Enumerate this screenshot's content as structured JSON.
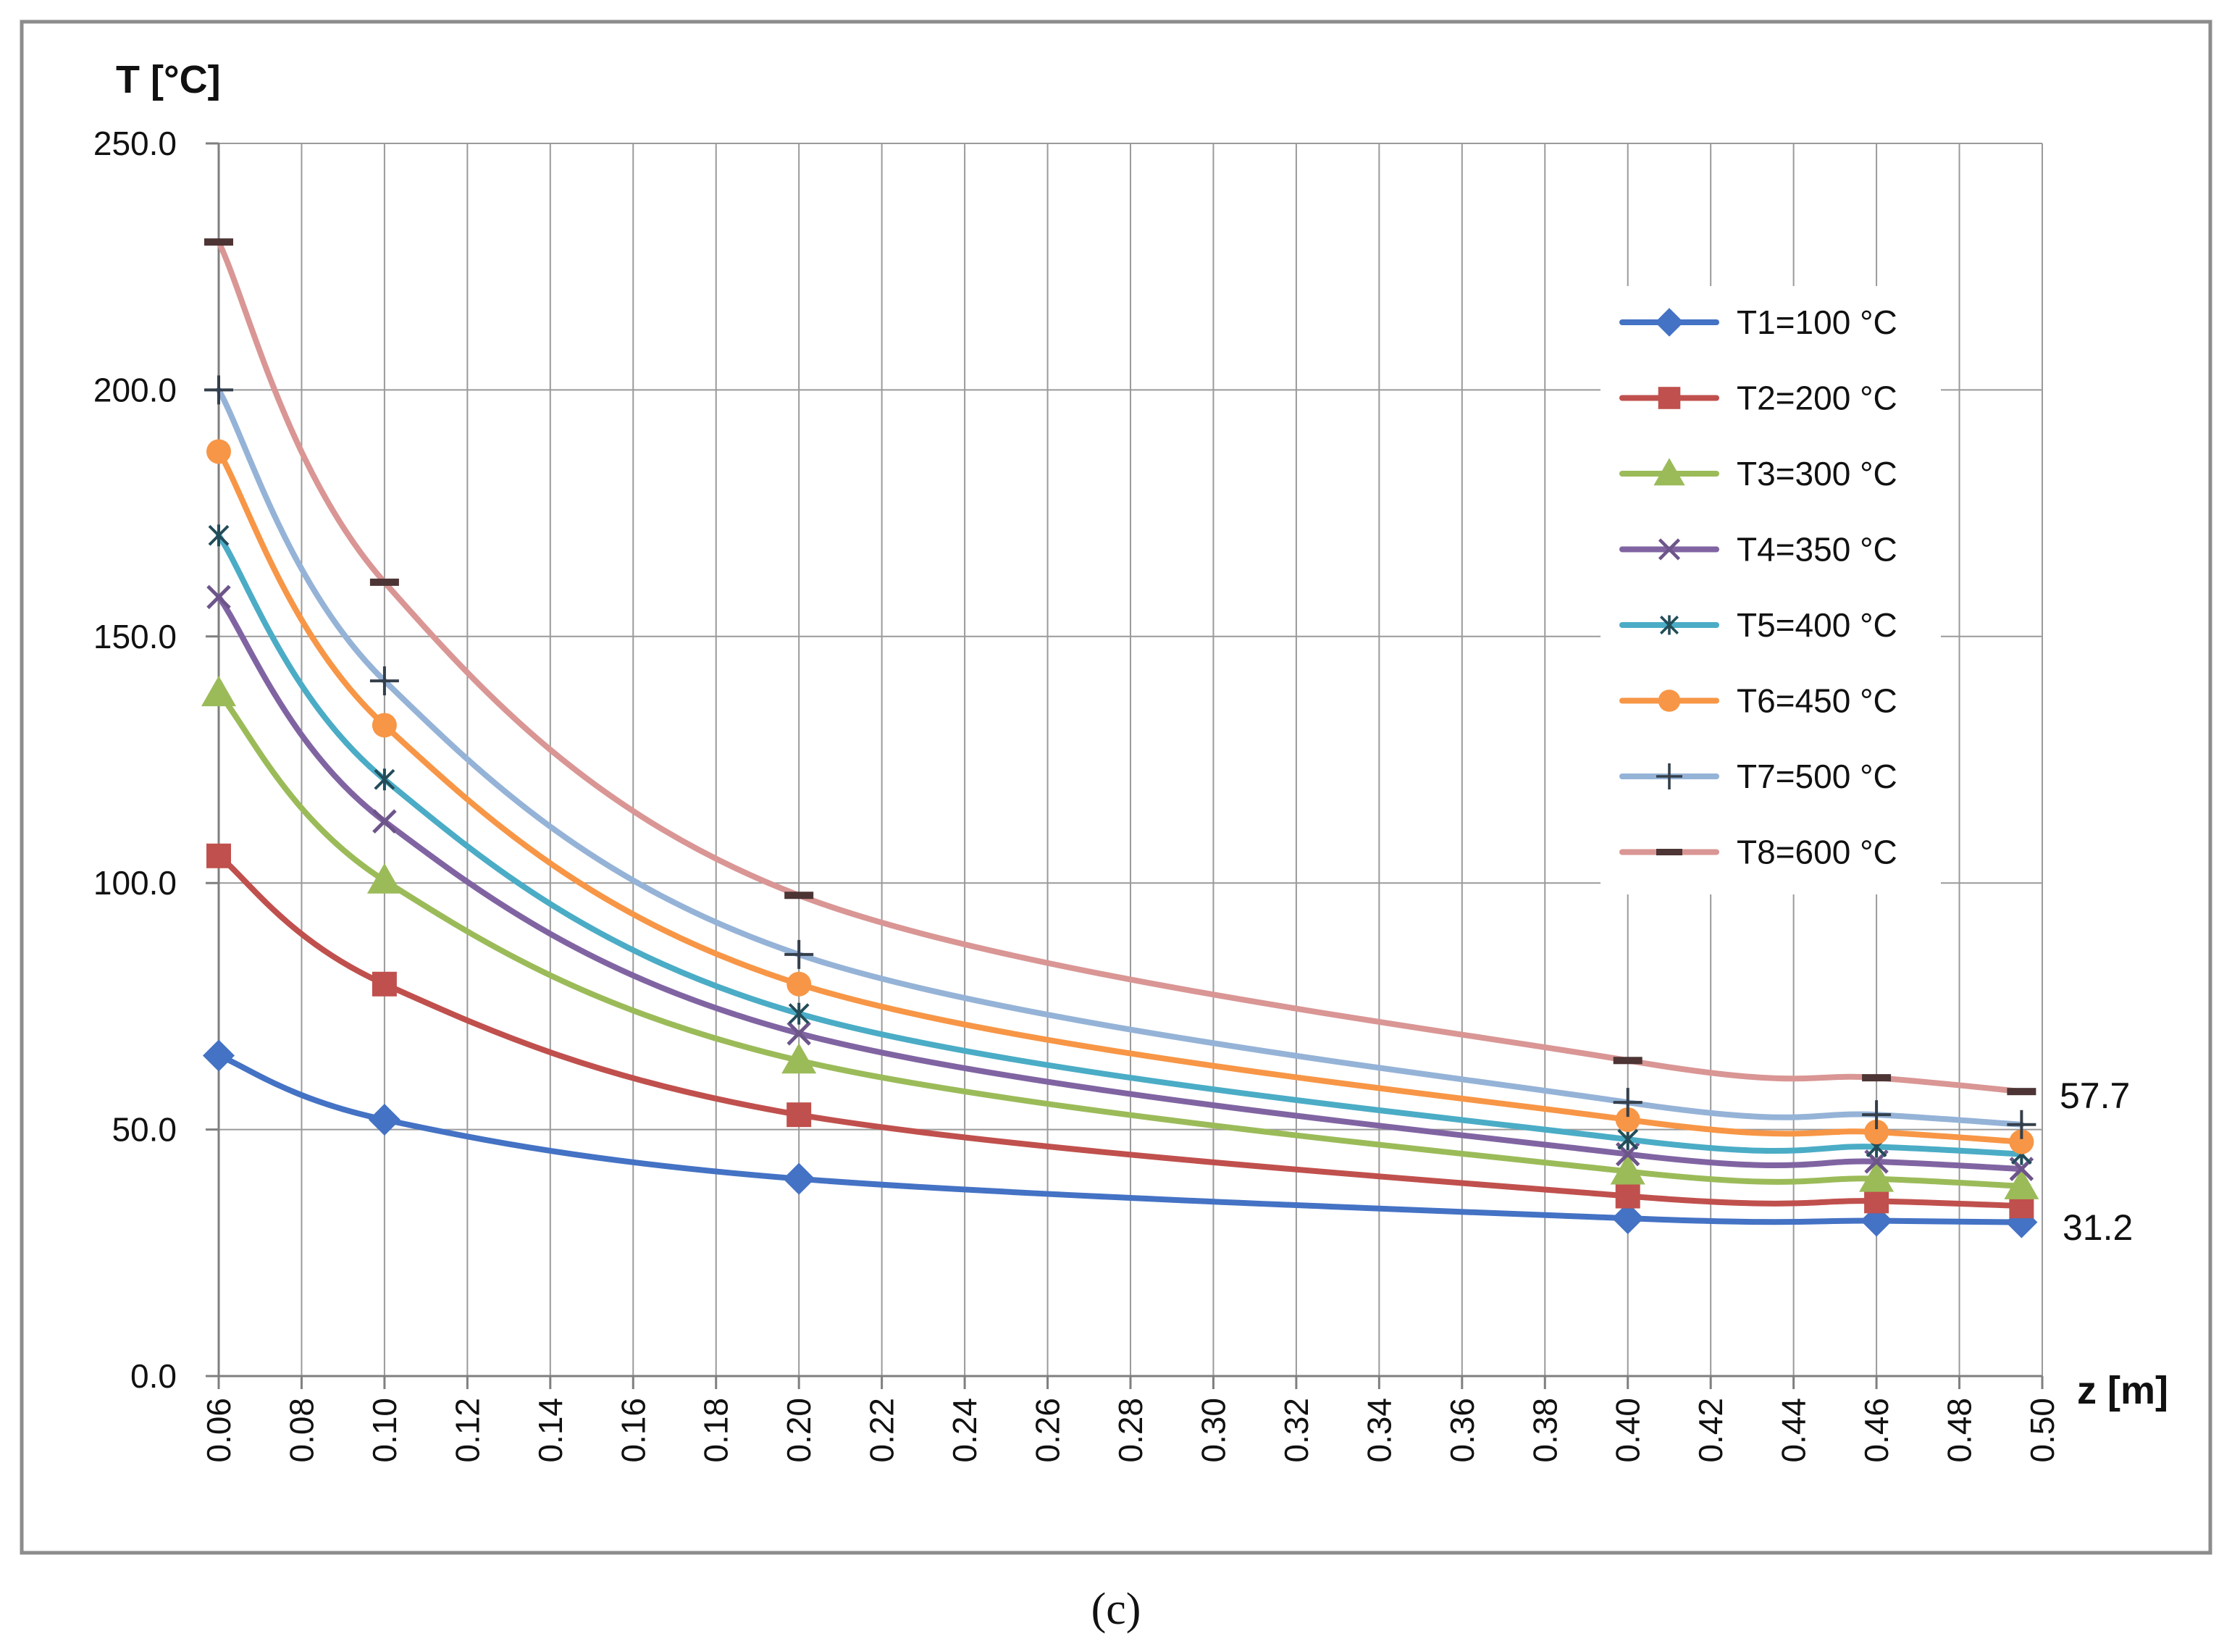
{
  "chart_data": {
    "type": "line",
    "title": "",
    "ylabel": "T [°C]",
    "xlabel": "z [m]",
    "xlim": [
      0.06,
      0.5
    ],
    "ylim": [
      0,
      250
    ],
    "x_ticks": [
      "0.06",
      "0.08",
      "0.10",
      "0.12",
      "0.14",
      "0.16",
      "0.18",
      "0.20",
      "0.22",
      "0.24",
      "0.26",
      "0.28",
      "0.30",
      "0.32",
      "0.34",
      "0.36",
      "0.38",
      "0.40",
      "0.42",
      "0.44",
      "0.46",
      "0.48",
      "0.50"
    ],
    "y_ticks": [
      "0.0",
      "50.0",
      "100.0",
      "150.0",
      "200.0",
      "250.0"
    ],
    "grid": true,
    "legend_position": "top-right",
    "x": [
      0.06,
      0.1,
      0.2,
      0.4,
      0.46,
      0.495
    ],
    "series": [
      {
        "name": "T1=100 °C",
        "color": "#4472C4",
        "marker": "diamond",
        "values": [
          65,
          52,
          40,
          32,
          31.5,
          31.2
        ]
      },
      {
        "name": "T2=200 °C",
        "color": "#C0504D",
        "marker": "square",
        "values": [
          105.5,
          79.5,
          53,
          36.5,
          35.5,
          34.5
        ]
      },
      {
        "name": "T3=300 °C",
        "color": "#9BBB59",
        "marker": "triangle",
        "values": [
          138.5,
          100.5,
          64,
          41.5,
          40,
          38.5
        ]
      },
      {
        "name": "T4=350 °C",
        "color": "#8064A2",
        "marker": "x",
        "values": [
          158,
          112.5,
          69.5,
          45,
          43.5,
          42
        ]
      },
      {
        "name": "T5=400 °C",
        "color": "#4BACC6",
        "marker": "star",
        "values": [
          170.5,
          121,
          73.5,
          48,
          46.5,
          45
        ]
      },
      {
        "name": "T6=450 °C",
        "color": "#F79646",
        "marker": "circle",
        "values": [
          187.5,
          132,
          79.5,
          52,
          49.5,
          47.5
        ]
      },
      {
        "name": "T7=500 °C",
        "color": "#95B3D7",
        "marker": "plus",
        "values": [
          200,
          141,
          85.5,
          55.5,
          53,
          51
        ]
      },
      {
        "name": "T8=600 °C",
        "color": "#D99694",
        "marker": "dash",
        "values": [
          230,
          161,
          97.5,
          64,
          60.5,
          57.7
        ]
      }
    ],
    "annotations": [
      "57.7",
      "31.2"
    ],
    "caption": "(c)"
  }
}
